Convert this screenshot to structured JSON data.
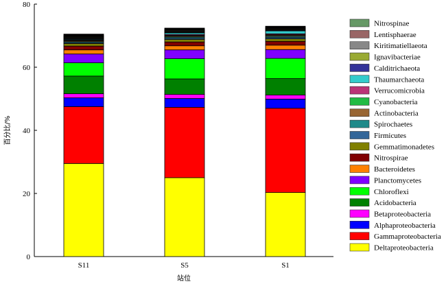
{
  "chart_data": {
    "type": "bar",
    "stacked": true,
    "title": "",
    "xlabel": "站位",
    "ylabel": "百分比/%",
    "categories": [
      "S11",
      "S5",
      "S1"
    ],
    "ylim": [
      0,
      80
    ],
    "yticks": [
      0,
      20,
      40,
      60,
      80
    ],
    "grid": false,
    "legend_position": "right",
    "series": [
      {
        "name": "Deltaproteobacteria",
        "color": "#ffff00",
        "values": [
          29.5,
          25.0,
          20.3
        ]
      },
      {
        "name": "Gammaproteobacteria",
        "color": "#ff0000",
        "values": [
          18.0,
          22.3,
          26.7
        ]
      },
      {
        "name": "Alphaproteobacteria",
        "color": "#0000ff",
        "values": [
          2.8,
          2.8,
          2.9
        ]
      },
      {
        "name": "Betaproteobacteria",
        "color": "#ff00ff",
        "values": [
          1.3,
          1.3,
          1.3
        ]
      },
      {
        "name": "Acidobacteria",
        "color": "#008000",
        "values": [
          5.6,
          4.9,
          5.2
        ]
      },
      {
        "name": "Chloroflexi",
        "color": "#00ff00",
        "values": [
          4.2,
          6.4,
          6.4
        ]
      },
      {
        "name": "Planctomycetes",
        "color": "#8000ff",
        "values": [
          2.8,
          2.8,
          2.8
        ]
      },
      {
        "name": "Bacteroidetes",
        "color": "#ff8000",
        "values": [
          1.3,
          1.3,
          1.4
        ]
      },
      {
        "name": "Nitrospirae",
        "color": "#800000",
        "values": [
          1.2,
          1.2,
          1.2
        ]
      },
      {
        "name": "Gemmatimonadetes",
        "color": "#808000",
        "values": [
          0.8,
          0.8,
          0.8
        ]
      },
      {
        "name": "Firmicutes",
        "color": "#336699",
        "values": [
          0.3,
          0.4,
          0.4
        ]
      },
      {
        "name": "Spirochaetes",
        "color": "#1f8a8a",
        "values": [
          0.3,
          0.4,
          0.4
        ]
      },
      {
        "name": "Actinobacteria",
        "color": "#996633",
        "values": [
          0.3,
          0.3,
          0.3
        ]
      },
      {
        "name": "Cyanobacteria",
        "color": "#22bb44",
        "values": [
          0.2,
          0.2,
          0.2
        ]
      },
      {
        "name": "Verrucomicrobia",
        "color": "#bb3377",
        "values": [
          0.2,
          0.3,
          0.3
        ]
      },
      {
        "name": "Thaumarchaeota",
        "color": "#33cccc",
        "values": [
          0.2,
          0.5,
          0.9
        ]
      },
      {
        "name": "Calditrichaeota",
        "color": "#333399",
        "values": [
          0.2,
          0.2,
          0.2
        ]
      },
      {
        "name": "Ignavibacteriae",
        "color": "#99aa33",
        "values": [
          0.2,
          0.2,
          0.2
        ]
      },
      {
        "name": "Kiritimatiellaeota",
        "color": "#888888",
        "values": [
          0.2,
          0.2,
          0.2
        ]
      },
      {
        "name": "Lentisphaerae",
        "color": "#996666",
        "values": [
          0.2,
          0.2,
          0.2
        ]
      },
      {
        "name": "Nitrospinae",
        "color": "#669966",
        "values": [
          0.2,
          0.2,
          0.2
        ]
      },
      {
        "name": "",
        "color": "#000000",
        "values": [
          0.5,
          0.5,
          0.5
        ]
      }
    ]
  }
}
